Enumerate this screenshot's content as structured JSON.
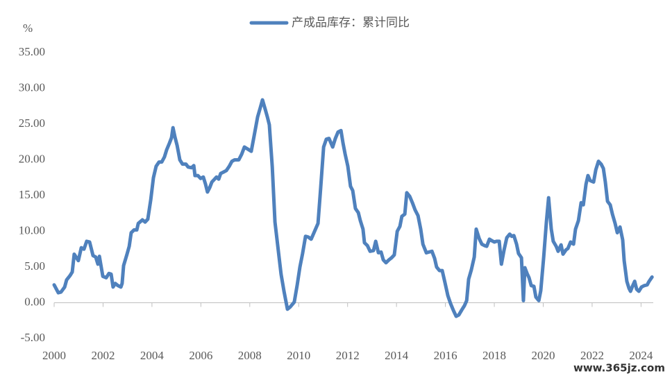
{
  "chart_data": {
    "type": "line",
    "y_unit": "%",
    "watermark": "www.365jz.com",
    "legend": "top",
    "grid": false,
    "xlim": [
      2000,
      2024.5
    ],
    "xticks": [
      2000,
      2002,
      2004,
      2006,
      2008,
      2010,
      2012,
      2014,
      2016,
      2018,
      2020,
      2022,
      2024
    ],
    "ylim": [
      -5,
      35
    ],
    "yticks": [
      {
        "value": -5,
        "label": "-5.00"
      },
      {
        "value": 0,
        "label": "0.00"
      },
      {
        "value": 5,
        "label": "5.00"
      },
      {
        "value": 10,
        "label": "10.00"
      },
      {
        "value": 15,
        "label": "15.00"
      },
      {
        "value": 20,
        "label": "20.00"
      },
      {
        "value": 25,
        "label": "25.00"
      },
      {
        "value": 30,
        "label": "30.00"
      },
      {
        "value": 35,
        "label": "35.00"
      }
    ],
    "x": [
      2000.0,
      2000.17,
      2000.28,
      2000.43,
      2000.51,
      2000.65,
      2000.74,
      2000.82,
      2000.99,
      2001.11,
      2001.22,
      2001.33,
      2001.45,
      2001.59,
      2001.7,
      2001.79,
      2001.85,
      2001.99,
      2002.13,
      2002.24,
      2002.33,
      2002.41,
      2002.5,
      2002.61,
      2002.73,
      2002.78,
      2002.84,
      2002.98,
      2003.07,
      2003.15,
      2003.27,
      2003.38,
      2003.44,
      2003.61,
      2003.72,
      2003.83,
      2003.95,
      2004.06,
      2004.17,
      2004.29,
      2004.4,
      2004.51,
      2004.6,
      2004.71,
      2004.8,
      2004.86,
      2004.94,
      2005.03,
      2005.14,
      2005.25,
      2005.39,
      2005.48,
      2005.62,
      2005.71,
      2005.76,
      2005.88,
      2005.99,
      2006.1,
      2006.19,
      2006.27,
      2006.36,
      2006.45,
      2006.56,
      2006.64,
      2006.73,
      2006.81,
      2006.93,
      2007.04,
      2007.16,
      2007.27,
      2007.38,
      2007.55,
      2007.67,
      2007.78,
      2007.92,
      2008.06,
      2008.18,
      2008.32,
      2008.43,
      2008.52,
      2008.63,
      2008.72,
      2008.8,
      2008.92,
      2009.03,
      2009.17,
      2009.28,
      2009.4,
      2009.54,
      2009.65,
      2009.82,
      2009.94,
      2010.05,
      2010.16,
      2010.28,
      2010.39,
      2010.51,
      2010.65,
      2010.79,
      2010.9,
      2011.02,
      2011.13,
      2011.24,
      2011.39,
      2011.5,
      2011.61,
      2011.73,
      2011.81,
      2011.9,
      2012.01,
      2012.12,
      2012.21,
      2012.32,
      2012.44,
      2012.52,
      2012.63,
      2012.69,
      2012.81,
      2012.92,
      2013.06,
      2013.15,
      2013.26,
      2013.37,
      2013.46,
      2013.57,
      2013.69,
      2013.8,
      2013.91,
      2014.03,
      2014.14,
      2014.22,
      2014.34,
      2014.42,
      2014.54,
      2014.65,
      2014.76,
      2014.88,
      2014.99,
      2015.08,
      2015.22,
      2015.33,
      2015.45,
      2015.56,
      2015.64,
      2015.76,
      2015.87,
      2015.99,
      2016.1,
      2016.21,
      2016.33,
      2016.44,
      2016.55,
      2016.67,
      2016.78,
      2016.87,
      2016.95,
      2017.06,
      2017.18,
      2017.26,
      2017.38,
      2017.49,
      2017.6,
      2017.69,
      2017.8,
      2017.89,
      2018.0,
      2018.09,
      2018.2,
      2018.29,
      2018.4,
      2018.51,
      2018.63,
      2018.71,
      2018.8,
      2018.91,
      2018.99,
      2019.11,
      2019.19,
      2019.25,
      2019.34,
      2019.42,
      2019.51,
      2019.62,
      2019.7,
      2019.82,
      2019.9,
      2020.02,
      2020.13,
      2020.22,
      2020.33,
      2020.41,
      2020.53,
      2020.61,
      2020.73,
      2020.81,
      2020.93,
      2021.01,
      2021.12,
      2021.24,
      2021.32,
      2021.44,
      2021.55,
      2021.64,
      2021.75,
      2021.83,
      2021.92,
      2022.06,
      2022.15,
      2022.26,
      2022.37,
      2022.46,
      2022.54,
      2022.63,
      2022.74,
      2022.83,
      2022.94,
      2023.03,
      2023.14,
      2023.25,
      2023.31,
      2023.42,
      2023.51,
      2023.57,
      2023.65,
      2023.74,
      2023.82,
      2023.91,
      2024.02,
      2024.13,
      2024.25,
      2024.33,
      2024.45
    ],
    "series": [
      {
        "name": "产成品库存：累计同比",
        "color": "#4f81bd",
        "values": [
          2.5,
          1.4,
          1.5,
          2.2,
          3.2,
          3.8,
          4.3,
          6.8,
          5.9,
          7.7,
          7.5,
          8.6,
          8.5,
          6.6,
          6.4,
          5.4,
          6.5,
          3.7,
          3.5,
          4.1,
          4.0,
          2.2,
          2.7,
          2.4,
          2.2,
          2.7,
          5.2,
          6.8,
          7.9,
          9.8,
          10.2,
          10.2,
          11.1,
          11.6,
          11.3,
          11.7,
          14.4,
          17.5,
          19.1,
          19.7,
          19.7,
          20.4,
          21.4,
          22.3,
          23.1,
          24.5,
          23.2,
          22.0,
          20.0,
          19.4,
          19.4,
          19.0,
          18.9,
          19.2,
          17.8,
          17.8,
          17.4,
          17.6,
          16.6,
          15.5,
          16.1,
          16.9,
          17.3,
          17.6,
          17.3,
          18.1,
          18.3,
          18.5,
          19.1,
          19.8,
          20.0,
          20.0,
          20.8,
          21.8,
          21.5,
          21.2,
          23.4,
          26.0,
          27.3,
          28.4,
          27.1,
          26.0,
          24.9,
          19.0,
          11.3,
          7.2,
          4.0,
          1.6,
          -0.9,
          -0.6,
          0.1,
          2.5,
          5.0,
          6.9,
          9.3,
          9.2,
          8.9,
          10.0,
          11.1,
          16.1,
          21.8,
          22.9,
          23.0,
          21.8,
          23.0,
          23.9,
          24.1,
          22.4,
          20.8,
          19.1,
          16.3,
          15.7,
          13.2,
          12.6,
          11.5,
          10.3,
          8.4,
          8.0,
          7.2,
          7.3,
          8.6,
          7.0,
          7.1,
          6.0,
          5.6,
          6.0,
          6.3,
          6.7,
          10.0,
          10.7,
          12.1,
          12.4,
          15.4,
          14.9,
          14.0,
          13.0,
          12.2,
          10.3,
          8.2,
          7.0,
          7.1,
          7.2,
          6.2,
          5.0,
          4.5,
          4.5,
          2.7,
          1.0,
          -0.1,
          -1.1,
          -1.9,
          -1.7,
          -1.0,
          -0.4,
          0.3,
          3.3,
          4.6,
          6.4,
          10.3,
          9.0,
          8.2,
          8.0,
          7.9,
          8.9,
          8.7,
          8.5,
          8.6,
          8.6,
          5.4,
          7.4,
          9.1,
          9.6,
          9.3,
          9.4,
          8.2,
          6.9,
          6.3,
          0.3,
          4.9,
          4.1,
          3.5,
          2.4,
          2.3,
          0.8,
          0.3,
          1.7,
          6.4,
          11.3,
          14.7,
          10.3,
          8.6,
          7.9,
          7.2,
          8.1,
          6.8,
          7.4,
          7.6,
          8.5,
          8.2,
          10.3,
          11.5,
          14.0,
          13.7,
          16.6,
          17.8,
          17.1,
          16.9,
          18.6,
          19.8,
          19.4,
          18.8,
          16.9,
          14.2,
          13.7,
          12.4,
          11.1,
          9.8,
          10.6,
          8.8,
          5.9,
          3.0,
          2.0,
          1.6,
          2.3,
          3.0,
          1.9,
          1.6,
          2.2,
          2.4,
          2.5,
          3.0,
          3.6
        ]
      }
    ]
  }
}
